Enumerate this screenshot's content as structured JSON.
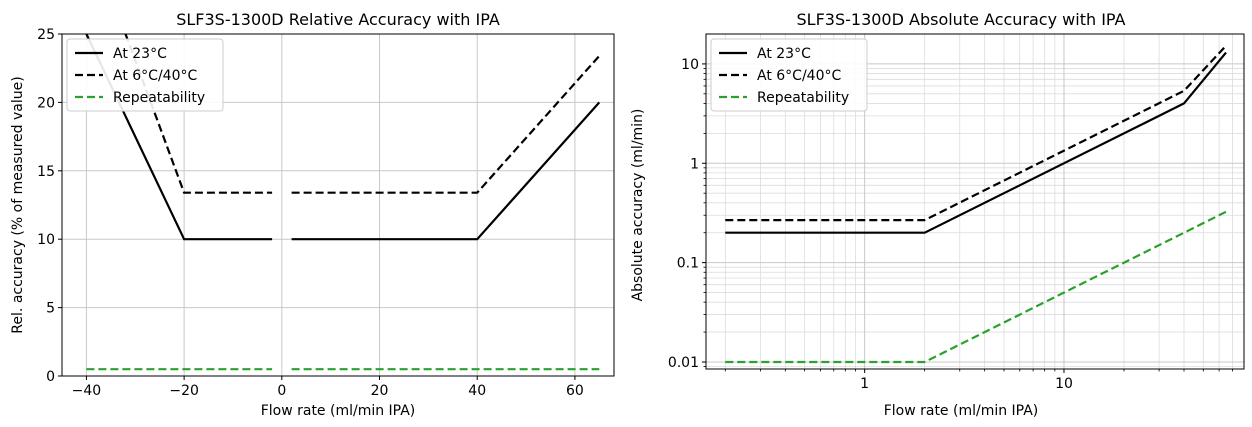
{
  "chart_data": [
    {
      "type": "line",
      "title": "SLF3S-1300D Relative Accuracy with IPA",
      "xlabel": "Flow rate (ml/min IPA)",
      "ylabel": "Rel. accuracy (% of measured value)",
      "xlim": [
        -45,
        68
      ],
      "ylim": [
        0,
        25
      ],
      "xscale": "linear",
      "yscale": "linear",
      "xticks": [
        -40,
        -20,
        0,
        20,
        40,
        60
      ],
      "xtick_labels": [
        "−40",
        "−20",
        "0",
        "20",
        "40",
        "60"
      ],
      "yticks": [
        0,
        5,
        10,
        15,
        20,
        25
      ],
      "ytick_labels": [
        "0",
        "5",
        "10",
        "15",
        "20",
        "25"
      ],
      "grid": true,
      "legend_position": "upper-left",
      "series": [
        {
          "name": "At 23°C",
          "style": "solid",
          "color": "#000000",
          "segments": [
            [
              [
                -40,
                25
              ],
              [
                -20,
                10
              ],
              [
                -2,
                10
              ]
            ],
            [
              [
                2,
                10
              ],
              [
                40,
                10
              ],
              [
                65,
                20
              ]
            ]
          ]
        },
        {
          "name": "At 6°C/40°C",
          "style": "dashed",
          "color": "#000000",
          "segments": [
            [
              [
                -32,
                25
              ],
              [
                -20,
                13.4
              ],
              [
                -2,
                13.4
              ]
            ],
            [
              [
                2,
                13.4
              ],
              [
                40,
                13.4
              ],
              [
                65,
                23.4
              ]
            ]
          ]
        },
        {
          "name": "Repeatability",
          "style": "dashed",
          "color": "#2ca02c",
          "segments": [
            [
              [
                -40,
                0.5
              ],
              [
                -2,
                0.5
              ]
            ],
            [
              [
                2,
                0.5
              ],
              [
                65,
                0.5
              ]
            ]
          ]
        }
      ]
    },
    {
      "type": "line",
      "title": "SLF3S-1300D Absolute Accuracy with IPA",
      "xlabel": "Flow rate (ml/min IPA)",
      "ylabel": "Absolute accuracy (ml/min)",
      "xlim": [
        0.16,
        80
      ],
      "ylim": [
        0.0085,
        20
      ],
      "xscale": "log",
      "yscale": "log",
      "xticks": [
        1,
        10
      ],
      "xtick_labels": [
        "1",
        "10"
      ],
      "yticks": [
        0.01,
        0.1,
        1,
        10
      ],
      "ytick_labels": [
        "0.01",
        "0.1",
        "1",
        "10"
      ],
      "grid": true,
      "legend_position": "upper-left",
      "series": [
        {
          "name": "At 23°C",
          "style": "solid",
          "color": "#000000",
          "segments": [
            [
              [
                0.2,
                0.2
              ],
              [
                2,
                0.2
              ],
              [
                40,
                4
              ],
              [
                65,
                13
              ]
            ]
          ]
        },
        {
          "name": "At 6°C/40°C",
          "style": "dashed",
          "color": "#000000",
          "segments": [
            [
              [
                0.2,
                0.268
              ],
              [
                2,
                0.268
              ],
              [
                40,
                5.36
              ],
              [
                65,
                15.2
              ]
            ]
          ]
        },
        {
          "name": "Repeatability",
          "style": "dashed",
          "color": "#2ca02c",
          "segments": [
            [
              [
                0.2,
                0.01
              ],
              [
                2,
                0.01
              ],
              [
                65,
                0.325
              ]
            ]
          ]
        }
      ]
    }
  ]
}
